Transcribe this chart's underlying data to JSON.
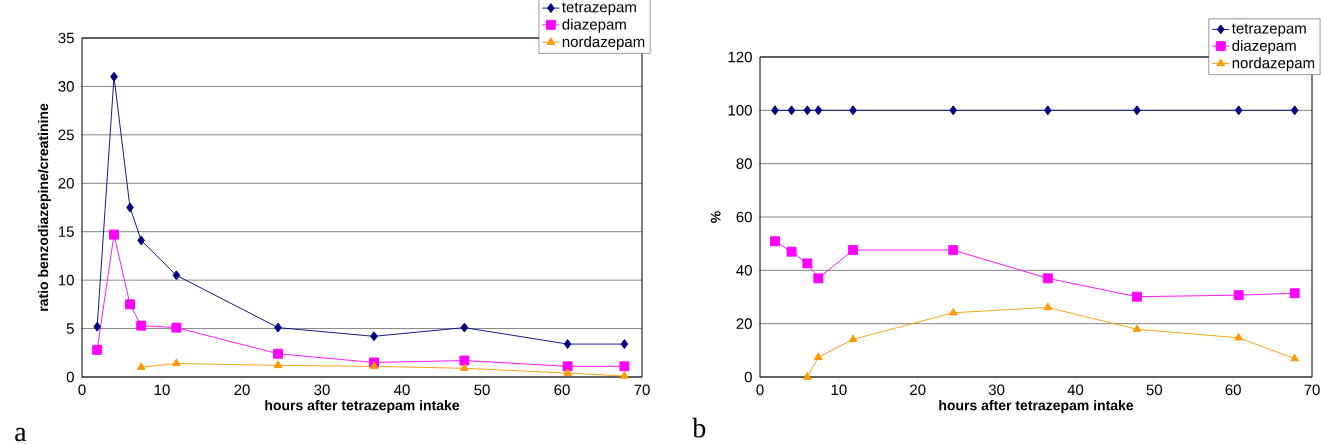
{
  "chart_data": [
    {
      "type": "line",
      "x": [
        1.9,
        4,
        6,
        7.4,
        11.8,
        24.5,
        36.5,
        47.8,
        60.7,
        67.8
      ],
      "xlabel": "hours after tetrazepam intake",
      "ylabel": "ratio benzodiazepine/creatinine",
      "series": [
        {
          "name": "tetrazepam",
          "color": "#000080",
          "marker": "diamond",
          "values": [
            5.2,
            31,
            17.5,
            14.1,
            10.5,
            5.1,
            4.2,
            5.1,
            3.4,
            3.4
          ]
        },
        {
          "name": "diazepam",
          "color": "#ff00ff",
          "marker": "square",
          "values": [
            2.8,
            14.7,
            7.5,
            5.3,
            5.1,
            2.4,
            1.5,
            1.7,
            1.1,
            1.1
          ]
        },
        {
          "name": "nordazepam",
          "color": "#ff9900",
          "marker": "triangle",
          "values": [
            null,
            null,
            null,
            1.0,
            1.4,
            1.2,
            1.1,
            0.9,
            0.4,
            0.1
          ]
        }
      ],
      "xlim": [
        0,
        70
      ],
      "xticks": [
        0,
        10,
        20,
        30,
        40,
        50,
        60,
        70
      ],
      "ylim": [
        0,
        35
      ],
      "yticks": [
        0,
        5,
        10,
        15,
        20,
        25,
        30,
        35
      ],
      "grid": "y",
      "legend": "top right",
      "annotations": [
        "a"
      ]
    },
    {
      "type": "line",
      "x": [
        1.9,
        4,
        6,
        7.4,
        11.8,
        24.5,
        36.5,
        47.8,
        60.7,
        67.8
      ],
      "xlabel": "hours after tetrazepam intake",
      "ylabel": "%",
      "series": [
        {
          "name": "tetrazepam",
          "color": "#000080",
          "marker": "diamond",
          "values": [
            100,
            100,
            100,
            100,
            100,
            100,
            100,
            100,
            100,
            100
          ]
        },
        {
          "name": "diazepam",
          "color": "#ff00ff",
          "marker": "square",
          "values": [
            50.9,
            47.0,
            42.6,
            37.0,
            47.6,
            47.6,
            37.0,
            30.1,
            30.7,
            31.4
          ]
        },
        {
          "name": "nordazepam",
          "color": "#ff9900",
          "marker": "triangle",
          "values": [
            null,
            null,
            0,
            7.4,
            14.1,
            24.1,
            26.1,
            17.9,
            14.7,
            6.9
          ]
        }
      ],
      "xlim": [
        0,
        70
      ],
      "xticks": [
        0,
        10,
        20,
        30,
        40,
        50,
        60,
        70
      ],
      "ylim": [
        0,
        120
      ],
      "yticks": [
        0,
        20,
        40,
        60,
        80,
        100,
        120
      ],
      "grid": "y",
      "legend": "top right",
      "annotations": [
        "b"
      ]
    }
  ]
}
